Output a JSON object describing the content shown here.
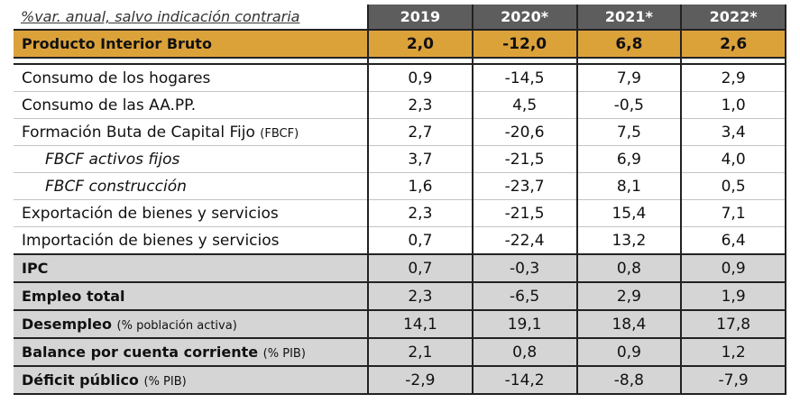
{
  "caption": "%var. anual, salvo indicación contraria",
  "years": [
    "2019",
    "2020*",
    "2021*",
    "2022*"
  ],
  "pib": {
    "label": "Producto Interior Bruto",
    "values": [
      "2,0",
      "-12,0",
      "6,8",
      "2,6"
    ]
  },
  "detail_rows": [
    {
      "label": "Consumo de los hogares",
      "note": "",
      "indent": false,
      "values": [
        "0,9",
        "-14,5",
        "7,9",
        "2,9"
      ]
    },
    {
      "label": "Consumo de las AA.PP.",
      "note": "",
      "indent": false,
      "values": [
        "2,3",
        "4,5",
        "-0,5",
        "1,0"
      ]
    },
    {
      "label": "Formación Buta de Capital Fijo",
      "note": "(FBCF)",
      "indent": false,
      "values": [
        "2,7",
        "-20,6",
        "7,5",
        "3,4"
      ]
    },
    {
      "label": "FBCF activos fijos",
      "note": "",
      "indent": true,
      "values": [
        "3,7",
        "-21,5",
        "6,9",
        "4,0"
      ]
    },
    {
      "label": "FBCF construcción",
      "note": "",
      "indent": true,
      "values": [
        "1,6",
        "-23,7",
        "8,1",
        "0,5"
      ]
    },
    {
      "label": "Exportación de bienes y servicios",
      "note": "",
      "indent": false,
      "values": [
        "2,3",
        "-21,5",
        "15,4",
        "7,1"
      ]
    },
    {
      "label": "Importación de bienes y servicios",
      "note": "",
      "indent": false,
      "values": [
        "0,7",
        "-22,4",
        "13,2",
        "6,4"
      ]
    }
  ],
  "summary_rows": [
    {
      "label": "IPC",
      "note": "",
      "values": [
        "0,7",
        "-0,3",
        "0,8",
        "0,9"
      ]
    },
    {
      "label": "Empleo total",
      "note": "",
      "values": [
        "2,3",
        "-6,5",
        "2,9",
        "1,9"
      ]
    },
    {
      "label": "Desempleo",
      "note": "(% población activa)",
      "values": [
        "14,1",
        "19,1",
        "18,4",
        "17,8"
      ]
    },
    {
      "label": "Balance por cuenta corriente",
      "note": "(% PIB)",
      "values": [
        "2,1",
        "0,8",
        "0,9",
        "1,2"
      ]
    },
    {
      "label": "Déficit público",
      "note": "(% PIB)",
      "values": [
        "-2,9",
        "-14,2",
        "-8,8",
        "-7,9"
      ]
    }
  ]
}
